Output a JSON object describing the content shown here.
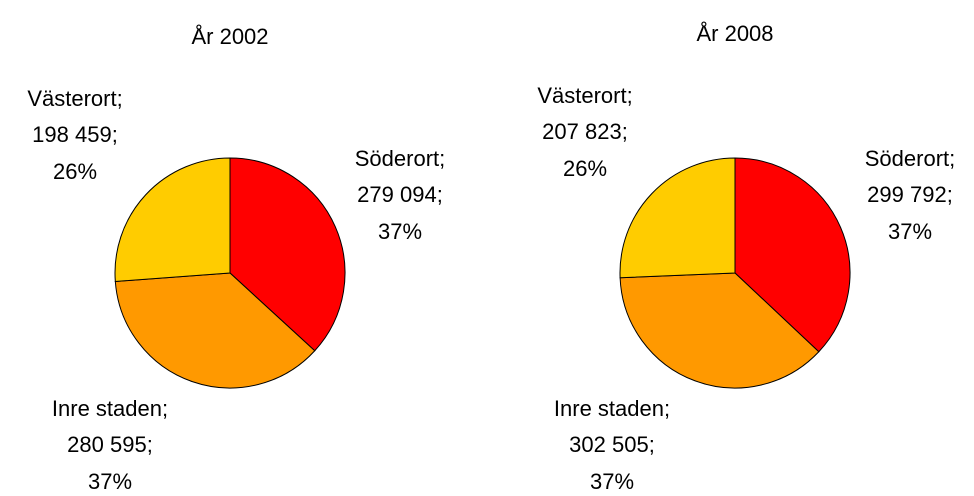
{
  "chart_data": [
    {
      "type": "pie",
      "title": "År 2002",
      "categories": [
        "Söderort;",
        "Inre staden;",
        "Västerort;"
      ],
      "values": [
        279094,
        280595,
        198459
      ],
      "value_labels": [
        "279 094;",
        "280 595;",
        "198 459;"
      ],
      "percents": [
        37,
        37,
        26
      ],
      "percent_labels": [
        "37%",
        "37%",
        "26%"
      ],
      "colors": [
        "#ff0000",
        "#ff9900",
        "#ffcc00"
      ]
    },
    {
      "type": "pie",
      "title": "År 2008",
      "categories": [
        "Söderort;",
        "Inre staden;",
        "Västerort;"
      ],
      "values": [
        299792,
        302505,
        207823
      ],
      "value_labels": [
        "299 792;",
        "302 505;",
        "207 823;"
      ],
      "percents": [
        37,
        37,
        26
      ],
      "percent_labels": [
        "37%",
        "37%",
        "26%"
      ],
      "colors": [
        "#ff0000",
        "#ff9900",
        "#ffcc00"
      ]
    }
  ]
}
